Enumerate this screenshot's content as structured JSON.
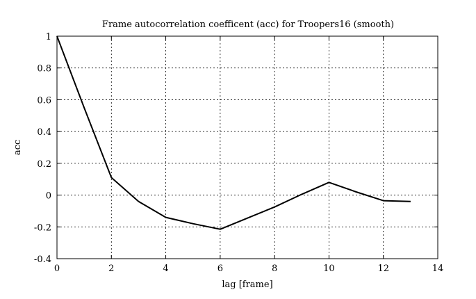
{
  "chart_data": {
    "type": "line",
    "title": "Frame autocorrelation coefficent (acc) for Troopers16 (smooth)",
    "xlabel": "lag [frame]",
    "ylabel": "acc",
    "xlim": [
      0,
      14
    ],
    "ylim": [
      -0.4,
      1
    ],
    "xticks": [
      0,
      2,
      4,
      6,
      8,
      10,
      12,
      14
    ],
    "yticks": [
      1,
      0.8,
      0.6,
      0.4,
      0.2,
      0,
      -0.2,
      -0.4
    ],
    "xtick_labels": [
      "0",
      "2",
      "4",
      "6",
      "8",
      "10",
      "12",
      "14"
    ],
    "ytick_labels": [
      "1",
      "0.8",
      "0.6",
      "0.4",
      "0.2",
      "0",
      "-0.2",
      "-0.4"
    ],
    "grid": true,
    "series": [
      {
        "x": [
          0,
          1,
          2,
          3,
          4,
          5,
          6,
          7,
          8,
          9,
          10,
          11,
          12,
          13
        ],
        "y": [
          1.0,
          0.55,
          0.11,
          -0.04,
          -0.14,
          -0.18,
          -0.215,
          -0.145,
          -0.075,
          0.005,
          0.08,
          0.02,
          -0.035,
          -0.04
        ],
        "color": "#000000"
      }
    ]
  }
}
